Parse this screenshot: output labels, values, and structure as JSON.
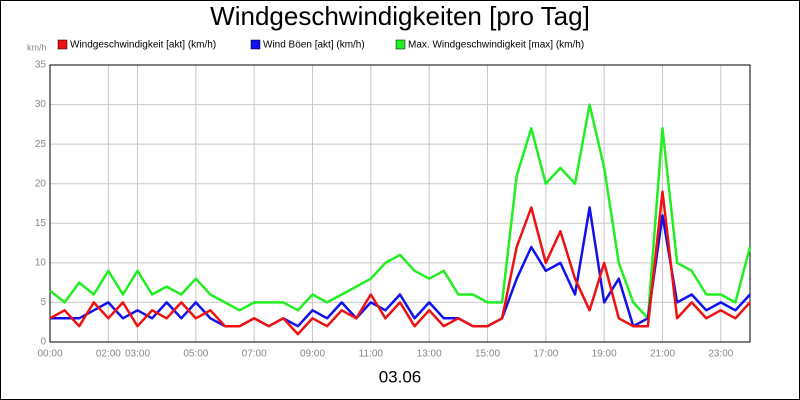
{
  "chart_data": {
    "type": "line",
    "title": "Windgeschwindigkeiten [pro Tag]",
    "y_label": "km/h",
    "x_label": "03.06",
    "x": [
      0,
      0.5,
      1,
      1.5,
      2,
      2.5,
      3,
      3.5,
      4,
      4.5,
      5,
      5.5,
      6,
      6.5,
      7,
      7.5,
      8,
      8.5,
      9,
      9.5,
      10,
      10.5,
      11,
      11.5,
      12,
      12.5,
      13,
      13.5,
      14,
      14.5,
      15,
      15.5,
      16,
      16.5,
      17,
      17.5,
      18,
      18.5,
      19,
      19.5,
      20,
      20.5,
      21,
      21.5,
      22,
      22.5,
      23,
      23.5,
      24
    ],
    "series": [
      {
        "name": "Windgeschwindigkeit [akt] (km/h)",
        "color": "#ee1111",
        "values": [
          3,
          4,
          2,
          5,
          3,
          5,
          2,
          4,
          3,
          5,
          3,
          4,
          2,
          2,
          3,
          2,
          3,
          1,
          3,
          2,
          4,
          3,
          6,
          3,
          5,
          2,
          4,
          2,
          3,
          2,
          2,
          3,
          12,
          17,
          10,
          14,
          8,
          4,
          10,
          3,
          2,
          2,
          19,
          3,
          5,
          3,
          4,
          3,
          5
        ]
      },
      {
        "name": "Wind Böen [akt] (km/h)",
        "color": "#1111ee",
        "values": [
          3,
          3,
          3,
          4,
          5,
          3,
          4,
          3,
          5,
          3,
          5,
          3,
          2,
          2,
          3,
          2,
          3,
          2,
          4,
          3,
          5,
          3,
          5,
          4,
          6,
          3,
          5,
          3,
          3,
          2,
          2,
          3,
          8,
          12,
          9,
          10,
          6,
          17,
          5,
          8,
          2,
          3,
          16,
          5,
          6,
          4,
          5,
          4,
          6
        ]
      },
      {
        "name": "Max. Windgeschwindigkeit [max] (km/h)",
        "color": "#22ee22",
        "values": [
          6.5,
          5,
          7.5,
          6,
          9,
          6,
          9,
          6,
          7,
          6,
          8,
          6,
          5,
          4,
          5,
          5,
          5,
          4,
          6,
          5,
          6,
          7,
          8,
          10,
          11,
          9,
          8,
          9,
          6,
          6,
          5,
          5,
          21,
          27,
          20,
          22,
          20,
          30,
          22,
          10,
          5,
          3,
          27,
          10,
          9,
          6,
          6,
          5,
          12
        ]
      }
    ],
    "xlim": [
      0,
      24
    ],
    "xticks": [
      {
        "value": 0,
        "label": "00:00"
      },
      {
        "value": 2,
        "label": "02:00"
      },
      {
        "value": 3,
        "label": "03:00"
      },
      {
        "value": 5,
        "label": "05:00"
      },
      {
        "value": 7,
        "label": "07:00"
      },
      {
        "value": 9,
        "label": "09:00"
      },
      {
        "value": 11,
        "label": "11:00"
      },
      {
        "value": 13,
        "label": "13:00"
      },
      {
        "value": 15,
        "label": "15:00"
      },
      {
        "value": 17,
        "label": "17:00"
      },
      {
        "value": 19,
        "label": "19:00"
      },
      {
        "value": 21,
        "label": "21:00"
      },
      {
        "value": 23,
        "label": "23:00"
      }
    ],
    "ylim": [
      0,
      35
    ],
    "yticks": [
      0,
      5,
      10,
      15,
      20,
      25,
      30,
      35
    ],
    "grid": true
  }
}
